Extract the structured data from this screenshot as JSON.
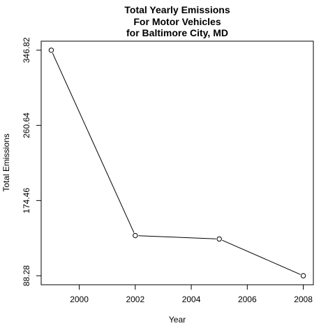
{
  "chart_data": {
    "type": "line",
    "title_lines": [
      "Total Yearly Emissions",
      "For Motor Vehicles",
      "for Baltimore City, MD"
    ],
    "xlabel": "Year",
    "ylabel": "Total Emissions",
    "x": [
      1999,
      2002,
      2005,
      2008
    ],
    "values": [
      346.82,
      134.31,
      130.43,
      88.28
    ],
    "x_ticks": [
      "2000",
      "2002",
      "2004",
      "2006",
      "2008"
    ],
    "y_ticks": [
      "88.28",
      "174.46",
      "260.64",
      "346.82"
    ],
    "xlim": [
      1998.64,
      2008.36
    ],
    "ylim": [
      77.94,
      357.16
    ],
    "grid": false,
    "marker": "open-circle",
    "line_color": "#000000"
  }
}
